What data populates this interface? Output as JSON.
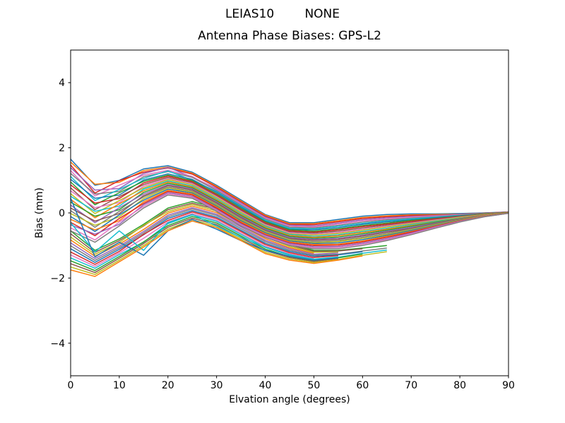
{
  "chart_data": {
    "type": "line",
    "title": "LEIAS10        NONE",
    "subtitle": "Antenna Phase Biases: GPS-L2",
    "xlabel": "Elvation angle (degrees)",
    "ylabel": "Bias (mm)",
    "xlim": [
      0,
      90
    ],
    "ylim": [
      -5,
      5
    ],
    "xticks": [
      0,
      10,
      20,
      30,
      40,
      50,
      60,
      70,
      80,
      90
    ],
    "yticks": [
      {
        "v": -4,
        "label": "−4"
      },
      {
        "v": -2,
        "label": "−2"
      },
      {
        "v": 0,
        "label": "0"
      },
      {
        "v": 2,
        "label": "2"
      },
      {
        "v": 4,
        "label": "4"
      }
    ],
    "grid": false,
    "legend": "none",
    "line_width": 1.5,
    "background": "#ffffff",
    "spine_color": "#000000",
    "palette": [
      "#1f77b4",
      "#ff7f0e",
      "#2ca02c",
      "#d62728",
      "#9467bd",
      "#8c564b",
      "#e377c2",
      "#7f7f7f",
      "#bcbd22",
      "#17becf"
    ],
    "x_start": 0,
    "x_step": 5,
    "series": [
      {
        "y": [
          1.65,
          0.85,
          1.0,
          1.35,
          1.45,
          1.25,
          0.85,
          0.4,
          -0.05,
          -0.3,
          -0.3,
          -0.2,
          -0.1,
          -0.05,
          -0.03,
          -0.03,
          -0.02,
          0.0,
          0.03
        ]
      },
      {
        "y": [
          1.56,
          0.88,
          0.94,
          1.3,
          1.41,
          1.22,
          0.82,
          0.37,
          -0.07,
          -0.33,
          -0.33,
          -0.24,
          -0.14,
          -0.09,
          -0.06,
          -0.05,
          -0.04,
          -0.01,
          0.03
        ]
      },
      {
        "y": [
          -0.55,
          -1.15,
          -0.8,
          -0.35,
          0.15,
          0.35,
          0.15,
          -0.25,
          -0.65,
          -0.95,
          -1.15,
          -1.15,
          -1.08,
          -1.0
        ]
      },
      {
        "y": [
          1.47,
          0.61,
          0.99,
          1.25,
          1.38,
          1.19,
          0.79,
          0.34,
          -0.1,
          -0.36,
          -0.36,
          -0.27,
          -0.17,
          -0.12,
          -0.08,
          -0.07,
          -0.05,
          -0.01,
          0.03
        ]
      },
      {
        "y": [
          1.39,
          0.7,
          0.75,
          1.21,
          1.4,
          1.1,
          0.75,
          0.3,
          -0.13,
          -0.38,
          -0.4,
          -0.31,
          -0.21,
          -0.15,
          -0.11,
          -0.08,
          -0.05,
          -0.02,
          0.03
        ]
      },
      {
        "y": [
          -0.64,
          -1.21,
          -0.85,
          -0.4,
          0.1,
          0.3,
          0.11,
          -0.3,
          -0.7,
          -0.99,
          -1.18,
          -1.17,
          -1.1
        ]
      },
      {
        "y": [
          1.3,
          0.52,
          0.85,
          1.16,
          1.31,
          1.12,
          0.72,
          0.27,
          -0.16,
          -0.41,
          -0.43,
          -0.34,
          -0.24,
          -0.18,
          -0.13,
          -0.1,
          -0.06,
          -0.02,
          0.02
        ]
      },
      {
        "y": [
          1.21,
          0.58,
          0.66,
          1.11,
          1.27,
          1.09,
          0.69,
          0.24,
          -0.19,
          -0.44,
          -0.46,
          -0.38,
          -0.28,
          -0.21,
          -0.16,
          -0.12,
          -0.07,
          -0.02,
          0.02
        ]
      },
      {
        "y": [
          -0.74,
          -1.27,
          -0.91,
          -0.38,
          0.04,
          0.26,
          0.06,
          -0.34,
          -0.74,
          -1.03,
          -1.21,
          -1.2
        ]
      },
      {
        "y": [
          1.12,
          0.38,
          0.72,
          1.06,
          1.29,
          1.0,
          0.66,
          0.21,
          -0.22,
          -0.47,
          -0.49,
          -0.41,
          -0.32,
          -0.24,
          -0.18,
          -0.13,
          -0.08,
          -0.03,
          0.02
        ]
      },
      {
        "y": [
          1.03,
          0.45,
          0.55,
          1.01,
          1.2,
          1.03,
          0.63,
          0.18,
          -0.25,
          -0.5,
          -0.52,
          -0.45,
          -0.35,
          -0.27,
          -0.21,
          -0.15,
          -0.09,
          -0.03,
          0.02
        ]
      },
      {
        "y": [
          -0.83,
          -1.33,
          -0.96,
          -0.51,
          -0.01,
          0.21,
          0.01,
          -0.39,
          -0.79,
          -1.07,
          -1.24
        ]
      },
      {
        "y": [
          0.95,
          0.25,
          0.62,
          0.97,
          1.16,
          0.99,
          0.59,
          0.14,
          -0.27,
          -0.52,
          -0.56,
          -0.49,
          -0.39,
          -0.31,
          -0.23,
          -0.17,
          -0.1,
          -0.03,
          0.02
        ]
      },
      {
        "y": [
          0.86,
          0.3,
          0.44,
          0.92,
          1.13,
          0.96,
          0.56,
          0.11,
          -0.3,
          -0.55,
          -0.59,
          -0.52,
          -0.42,
          -0.34,
          -0.26,
          -0.18,
          -0.11,
          -0.04,
          0.02
        ]
      },
      {
        "y": [
          -0.92,
          -1.4,
          -1.02,
          -0.57,
          -0.07,
          0.16,
          -0.04,
          -0.43,
          -0.84,
          -1.1,
          -1.27,
          -1.23
        ]
      },
      {
        "y": [
          0.77,
          0.1,
          0.5,
          0.87,
          1.09,
          0.93,
          0.53,
          0.08,
          -0.33,
          -0.58,
          -0.62,
          -0.56,
          -0.46,
          -0.37,
          -0.29,
          -0.2,
          -0.12,
          -0.04,
          0.01
        ]
      },
      {
        "y": [
          0.68,
          0.16,
          0.32,
          0.82,
          1.05,
          0.9,
          0.5,
          0.05,
          -0.36,
          -0.61,
          -0.65,
          -0.6,
          -0.5,
          -0.4,
          -0.31,
          -0.22,
          -0.13,
          -0.05,
          0.01
        ]
      },
      {
        "y": [
          -1.01,
          -1.46,
          -1.07,
          -0.62,
          -0.12,
          0.12,
          -0.08,
          -0.48,
          -0.88,
          -1.14,
          -1.3,
          -1.27,
          -1.17,
          -1.08
        ]
      },
      {
        "y": [
          0.59,
          -0.02,
          0.38,
          0.77,
          1.02,
          0.87,
          0.47,
          0.02,
          -0.39,
          -0.64,
          -0.68,
          -0.63,
          -0.53,
          -0.43,
          -0.33,
          -0.24,
          -0.14,
          -0.05,
          0.01
        ]
      },
      {
        "y": [
          0.51,
          0.05,
          0.21,
          0.73,
          0.98,
          0.83,
          0.43,
          -0.02,
          -0.41,
          -0.66,
          -0.72,
          -0.67,
          -0.57,
          -0.47,
          -0.36,
          -0.26,
          -0.16,
          -0.06,
          0.01
        ]
      },
      {
        "y": [
          -1.1,
          -1.52,
          -1.12,
          -0.67,
          -0.17,
          0.07,
          -0.13,
          -0.53,
          -0.93,
          -1.18,
          -1.33,
          -1.29,
          -1.19
        ]
      },
      {
        "y": [
          0.42,
          -0.15,
          0.28,
          0.68,
          0.95,
          0.8,
          0.4,
          -0.05,
          -0.44,
          -0.69,
          -0.75,
          -0.7,
          -0.6,
          -0.5,
          -0.39,
          -0.28,
          -0.17,
          -0.06,
          0.01
        ]
      },
      {
        "y": [
          0.33,
          -0.1,
          0.1,
          0.63,
          0.91,
          0.77,
          0.37,
          -0.08,
          -0.47,
          -0.72,
          -0.78,
          -0.74,
          -0.64,
          -0.53,
          -0.41,
          -0.29,
          -0.18,
          -0.07,
          0.01
        ]
      },
      {
        "y": [
          -1.2,
          -1.58,
          -1.18,
          -0.66,
          -0.23,
          0.03,
          -0.17,
          -0.57,
          -0.97,
          -1.22,
          -1.37,
          -1.31
        ]
      },
      {
        "y": [
          0.24,
          -0.3,
          0.16,
          0.58,
          0.87,
          0.74,
          0.34,
          -0.11,
          -0.5,
          -0.75,
          -0.81,
          -0.78,
          -0.68,
          -0.56,
          -0.44,
          -0.31,
          -0.19,
          -0.07,
          0.0
        ]
      },
      {
        "y": [
          0.15,
          -0.25,
          -0.02,
          0.53,
          0.84,
          0.71,
          0.31,
          -0.14,
          -0.53,
          -0.78,
          -0.84,
          -0.81,
          -0.71,
          -0.59,
          -0.47,
          -0.33,
          -0.2,
          -0.08,
          0.0
        ]
      },
      {
        "y": [
          -1.29,
          -1.64,
          -1.23,
          -0.78,
          -0.28,
          -0.02,
          -0.22,
          -0.62,
          -1.02,
          -1.26,
          -1.4
        ]
      },
      {
        "y": [
          0.07,
          -0.44,
          0.05,
          0.49,
          0.8,
          0.67,
          0.27,
          -0.18,
          -0.55,
          -0.8,
          -0.88,
          -0.85,
          -0.75,
          -0.63,
          -0.49,
          -0.35,
          -0.21,
          -0.09,
          0.0
        ]
      },
      {
        "y": [
          -0.02,
          -0.38,
          -0.12,
          0.44,
          0.77,
          0.64,
          0.24,
          -0.21,
          -0.58,
          -0.83,
          -0.91,
          -0.88,
          -0.78,
          -0.66,
          -0.52,
          -0.36,
          -0.22,
          -0.09,
          0.0
        ]
      },
      {
        "y": [
          -1.38,
          -1.7,
          -1.28,
          -0.9,
          -0.33,
          -0.06,
          -0.26,
          -0.66,
          -1.06,
          -1.3,
          -1.43,
          -1.36,
          -1.24,
          -1.14
        ]
      },
      {
        "y": [
          -0.11,
          -0.57,
          -0.06,
          0.39,
          0.73,
          0.61,
          0.21,
          -0.24,
          -0.61,
          -0.86,
          -0.94,
          -0.92,
          -0.82,
          -0.69,
          -0.54,
          -0.38,
          -0.23,
          -0.1,
          0.0
        ]
      },
      {
        "y": [
          -0.2,
          -0.52,
          -0.24,
          0.34,
          0.69,
          0.58,
          0.18,
          -0.27,
          -0.64,
          -0.89,
          -0.97,
          -0.96,
          -0.86,
          -0.72,
          -0.57,
          -0.4,
          -0.24,
          -0.1,
          0.0
        ]
      },
      {
        "y": [
          -1.47,
          -1.77,
          -1.34,
          -0.89,
          -0.39,
          -0.11,
          -0.31,
          -0.71,
          -1.11,
          -1.34,
          -1.46,
          -1.38,
          -1.26
        ]
      },
      {
        "y": [
          -0.29,
          -0.7,
          -0.17,
          0.29,
          0.66,
          0.55,
          0.15,
          -0.3,
          -0.67,
          -0.92,
          -1.0,
          -0.99,
          -0.89,
          -0.75,
          -0.59,
          -0.42,
          -0.25,
          -0.11,
          -0.01
        ]
      },
      {
        "y": [
          -0.37,
          -0.65,
          -0.35,
          0.25,
          0.62,
          0.51,
          0.11,
          -0.34,
          -0.69,
          -0.94,
          -1.04,
          -1.03,
          -0.93,
          -0.79,
          -0.62,
          -0.43,
          -0.26,
          -0.11,
          -0.01
        ]
      },
      {
        "y": [
          -1.56,
          -1.83,
          -1.39,
          -0.94,
          -0.44,
          -0.16,
          -0.36,
          -0.76,
          -1.16,
          -1.37,
          -1.49,
          -1.4
        ]
      },
      {
        "y": [
          -0.46,
          -0.83,
          -0.28,
          0.2,
          0.59,
          0.48,
          0.08,
          -0.37,
          -0.72,
          -0.97,
          -1.07,
          -1.06,
          -0.96,
          -0.82,
          -0.64,
          -0.45,
          -0.27,
          -0.12,
          -0.01
        ]
      },
      {
        "y": [
          -0.55,
          -0.9,
          -0.4,
          0.15,
          0.55,
          0.45,
          0.05,
          -0.4,
          -0.75,
          -1.0,
          -1.1,
          -1.1,
          -1.0,
          -0.85,
          -0.67,
          -0.47,
          -0.28,
          -0.12,
          -0.01
        ]
      },
      {
        "y": [
          -1.66,
          -1.89,
          -1.45,
          -1.0,
          -0.5,
          -0.21,
          -0.41,
          -0.81,
          -1.21,
          -1.41,
          -1.52,
          -1.43,
          -1.3,
          -1.19
        ]
      },
      {
        "y": [
          -0.3,
          -1.2,
          -0.55,
          -1.15,
          -0.3,
          -0.05,
          -0.4,
          -0.75,
          -1.05,
          -1.28,
          -1.42,
          -1.35
        ]
      },
      {
        "y": [
          0.45,
          -1.35,
          -0.9,
          -1.3,
          -0.55,
          -0.2,
          -0.5,
          -0.85,
          -1.15,
          -1.33,
          -1.45,
          -1.38
        ]
      },
      {
        "y": [
          -1.75,
          -1.95,
          -1.5,
          -1.05,
          -0.55,
          -0.25,
          -0.45,
          -0.85,
          -1.25,
          -1.45,
          -1.55,
          -1.45,
          -1.32
        ]
      }
    ]
  }
}
